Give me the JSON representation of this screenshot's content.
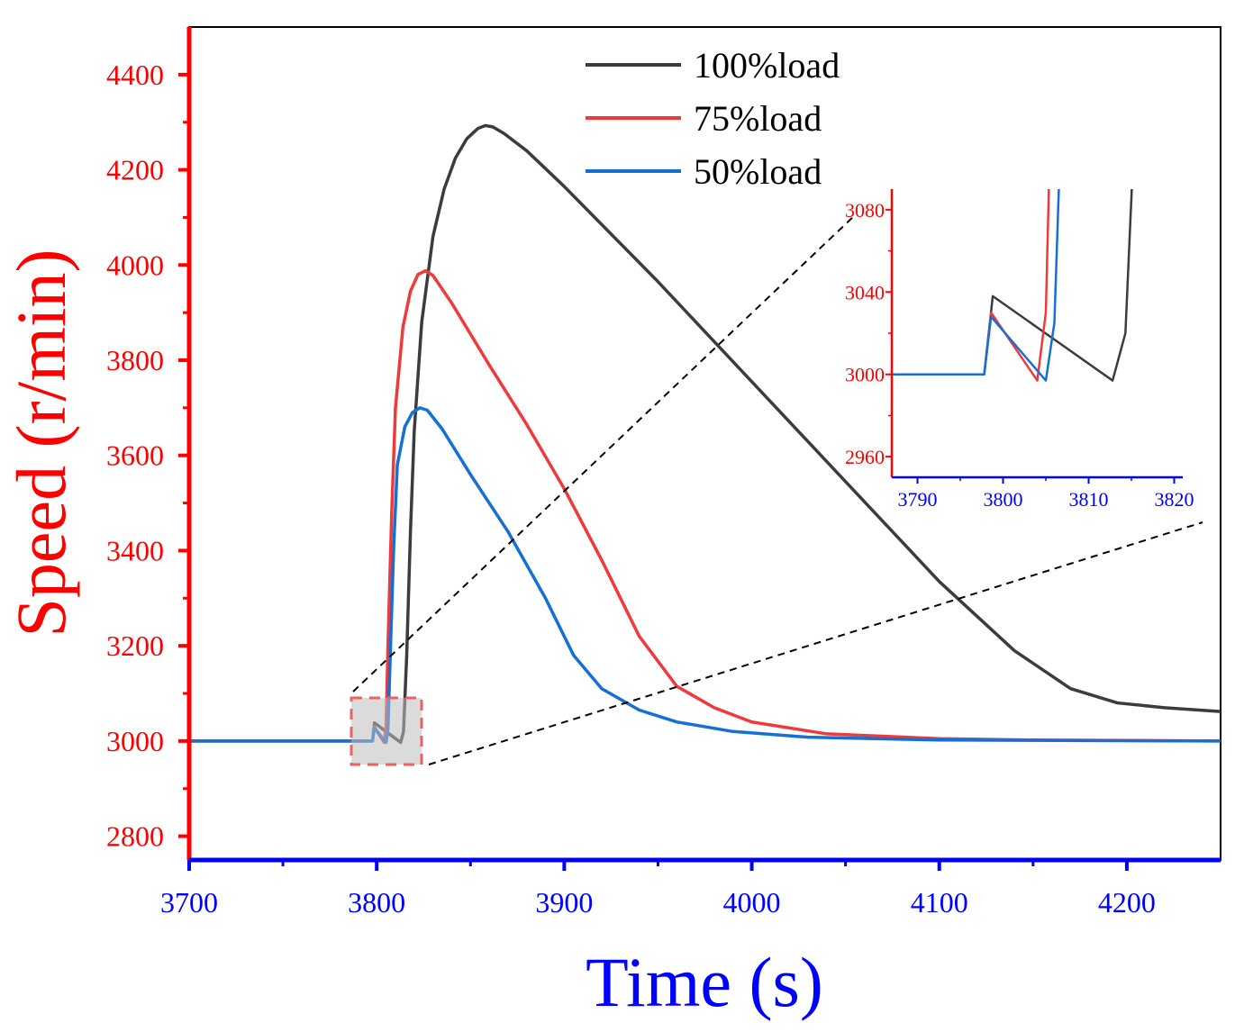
{
  "chart_data": {
    "type": "line",
    "title": "",
    "xlabel": "Time (s)",
    "ylabel": "Speed (r/min)",
    "xlim": [
      3700,
      4250
    ],
    "ylim": [
      2750,
      4500
    ],
    "x_ticks": [
      3700,
      3800,
      3900,
      4000,
      4100,
      4200
    ],
    "y_ticks": [
      2800,
      3000,
      3200,
      3400,
      3600,
      3800,
      4000,
      4200,
      4400
    ],
    "legend_position": "top-center",
    "grid": false,
    "colors": {
      "y_axis": "#ff0000",
      "x_axis": "#0000ff"
    },
    "series": [
      {
        "name": "100%load",
        "color": "#3c3c3c",
        "points": [
          [
            3700,
            3000
          ],
          [
            3797.8,
            3000
          ],
          [
            3798.8,
            3038
          ],
          [
            3812.8,
            2997
          ],
          [
            3814.3,
            3020
          ],
          [
            3816,
            3180
          ],
          [
            3818,
            3440
          ],
          [
            3820,
            3650
          ],
          [
            3824,
            3880
          ],
          [
            3830,
            4060
          ],
          [
            3836,
            4160
          ],
          [
            3842,
            4225
          ],
          [
            3848,
            4265
          ],
          [
            3854,
            4287
          ],
          [
            3858,
            4293
          ],
          [
            3862,
            4290
          ],
          [
            3868,
            4276
          ],
          [
            3880,
            4240
          ],
          [
            3900,
            4165
          ],
          [
            3950,
            3965
          ],
          [
            4000,
            3755
          ],
          [
            4050,
            3545
          ],
          [
            4100,
            3335
          ],
          [
            4140,
            3190
          ],
          [
            4170,
            3110
          ],
          [
            4195,
            3080
          ],
          [
            4220,
            3070
          ],
          [
            4250,
            3062
          ]
        ]
      },
      {
        "name": "75%load",
        "color": "#f03a3a",
        "points": [
          [
            3700,
            3000
          ],
          [
            3797.8,
            3000
          ],
          [
            3798.6,
            3030
          ],
          [
            3804,
            2997
          ],
          [
            3805,
            3030
          ],
          [
            3806,
            3200
          ],
          [
            3808,
            3480
          ],
          [
            3810,
            3700
          ],
          [
            3814,
            3870
          ],
          [
            3818,
            3945
          ],
          [
            3822,
            3980
          ],
          [
            3826,
            3988
          ],
          [
            3830,
            3978
          ],
          [
            3840,
            3920
          ],
          [
            3860,
            3790
          ],
          [
            3880,
            3665
          ],
          [
            3900,
            3530
          ],
          [
            3920,
            3380
          ],
          [
            3940,
            3220
          ],
          [
            3960,
            3115
          ],
          [
            3980,
            3070
          ],
          [
            4000,
            3040
          ],
          [
            4040,
            3015
          ],
          [
            4100,
            3005
          ],
          [
            4150,
            3002
          ],
          [
            4250,
            3000
          ]
        ]
      },
      {
        "name": "50%load",
        "color": "#1570d6",
        "points": [
          [
            3700,
            3000
          ],
          [
            3797.8,
            3000
          ],
          [
            3798.6,
            3028
          ],
          [
            3805,
            2997
          ],
          [
            3806,
            3025
          ],
          [
            3807,
            3150
          ],
          [
            3809,
            3400
          ],
          [
            3811,
            3580
          ],
          [
            3815,
            3660
          ],
          [
            3819,
            3690
          ],
          [
            3823,
            3700
          ],
          [
            3827,
            3695
          ],
          [
            3835,
            3655
          ],
          [
            3850,
            3560
          ],
          [
            3870,
            3440
          ],
          [
            3890,
            3300
          ],
          [
            3905,
            3180
          ],
          [
            3920,
            3110
          ],
          [
            3940,
            3065
          ],
          [
            3960,
            3040
          ],
          [
            3990,
            3020
          ],
          [
            4030,
            3008
          ],
          [
            4100,
            3002
          ],
          [
            4250,
            3000
          ]
        ]
      }
    ],
    "inset": {
      "xlim": [
        3787,
        3821
      ],
      "ylim": [
        2950,
        3090
      ],
      "x_ticks": [
        3790,
        3800,
        3810,
        3820
      ],
      "y_ticks": [
        2960,
        3000,
        3040,
        3080
      ]
    }
  },
  "labels": {
    "legend": [
      "100%load",
      "75%load",
      "50%load"
    ]
  }
}
